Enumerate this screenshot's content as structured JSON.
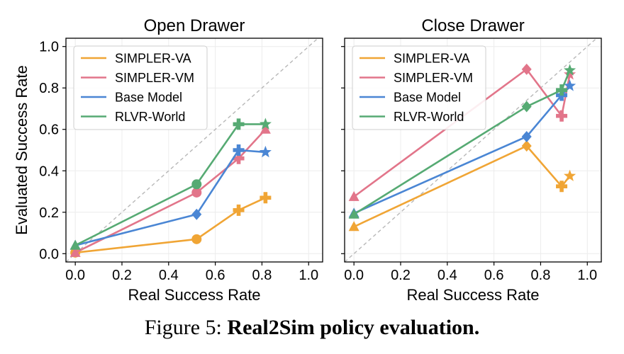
{
  "figure": {
    "ylabel": "Evaluated Success Rate",
    "caption_prefix": "Figure 5: ",
    "caption_title": "Real2Sim policy evaluation."
  },
  "series_styles": [
    {
      "name": "SIMPLER-VA",
      "color": "#f0a535"
    },
    {
      "name": "SIMPLER-VM",
      "color": "#e2758a"
    },
    {
      "name": "Base Model",
      "color": "#4a86d4"
    },
    {
      "name": "RLVR-World",
      "color": "#56aa73"
    }
  ],
  "marker_shapes": [
    "triangle",
    "circle",
    "diamond",
    "plus",
    "star"
  ],
  "chart_data": [
    {
      "type": "line",
      "title": "Open Drawer",
      "xlabel": "Real Success Rate",
      "ylabel": "Evaluated Success Rate",
      "xlim": [
        -0.04,
        1.06
      ],
      "ylim": [
        -0.04,
        1.04
      ],
      "xticks": [
        "0.0",
        "0.2",
        "0.4",
        "0.6",
        "0.8",
        "1.0"
      ],
      "yticks": [
        "0.0",
        "0.2",
        "0.4",
        "0.6",
        "0.8",
        "1.0"
      ],
      "diagonal": true,
      "grid": true,
      "legend_position": "top-left",
      "series": [
        {
          "name": "SIMPLER-VA",
          "x": [
            0.0,
            0.52,
            0.7,
            0.815
          ],
          "y": [
            0.005,
            0.07,
            0.21,
            0.27
          ],
          "markers": [
            "circle",
            "circle",
            "plus",
            "plus"
          ]
        },
        {
          "name": "SIMPLER-VM",
          "x": [
            0.0,
            0.52,
            0.7,
            0.815
          ],
          "y": [
            0.005,
            0.295,
            0.46,
            0.6
          ],
          "markers": [
            "triangle",
            "circle",
            "plus",
            "triangle"
          ]
        },
        {
          "name": "Base Model",
          "x": [
            0.0,
            0.52,
            0.7,
            0.815
          ],
          "y": [
            0.04,
            0.19,
            0.5,
            0.49
          ],
          "markers": [
            "triangle",
            "diamond",
            "plus",
            "star"
          ]
        },
        {
          "name": "RLVR-World",
          "x": [
            0.0,
            0.52,
            0.7,
            0.815
          ],
          "y": [
            0.04,
            0.335,
            0.625,
            0.625
          ],
          "markers": [
            "triangle",
            "circle",
            "plus",
            "star"
          ]
        }
      ]
    },
    {
      "type": "line",
      "title": "Close Drawer",
      "xlabel": "Real Success Rate",
      "ylabel": "",
      "xlim": [
        -0.04,
        1.06
      ],
      "ylim": [
        -0.04,
        1.04
      ],
      "xticks": [
        "0.0",
        "0.2",
        "0.4",
        "0.6",
        "0.8",
        "1.0"
      ],
      "yticks": [
        "0.0",
        "0.2",
        "0.4",
        "0.6",
        "0.8",
        "1.0"
      ],
      "diagonal": true,
      "grid": true,
      "legend_position": "top-left",
      "series": [
        {
          "name": "SIMPLER-VA",
          "x": [
            0.0,
            0.74,
            0.89,
            0.925
          ],
          "y": [
            0.13,
            0.52,
            0.325,
            0.375
          ],
          "markers": [
            "triangle",
            "diamond",
            "plus",
            "star"
          ]
        },
        {
          "name": "SIMPLER-VM",
          "x": [
            0.0,
            0.74,
            0.89,
            0.925
          ],
          "y": [
            0.275,
            0.89,
            0.665,
            0.865
          ],
          "markers": [
            "triangle",
            "diamond",
            "plus",
            "star"
          ]
        },
        {
          "name": "Base Model",
          "x": [
            0.0,
            0.74,
            0.89,
            0.925
          ],
          "y": [
            0.195,
            0.565,
            0.765,
            0.81
          ],
          "markers": [
            "triangle",
            "diamond",
            "plus",
            "star"
          ]
        },
        {
          "name": "RLVR-World",
          "x": [
            0.0,
            0.74,
            0.89,
            0.925
          ],
          "y": [
            0.19,
            0.71,
            0.79,
            0.885
          ],
          "markers": [
            "triangle",
            "diamond",
            "plus",
            "star"
          ]
        }
      ]
    }
  ]
}
